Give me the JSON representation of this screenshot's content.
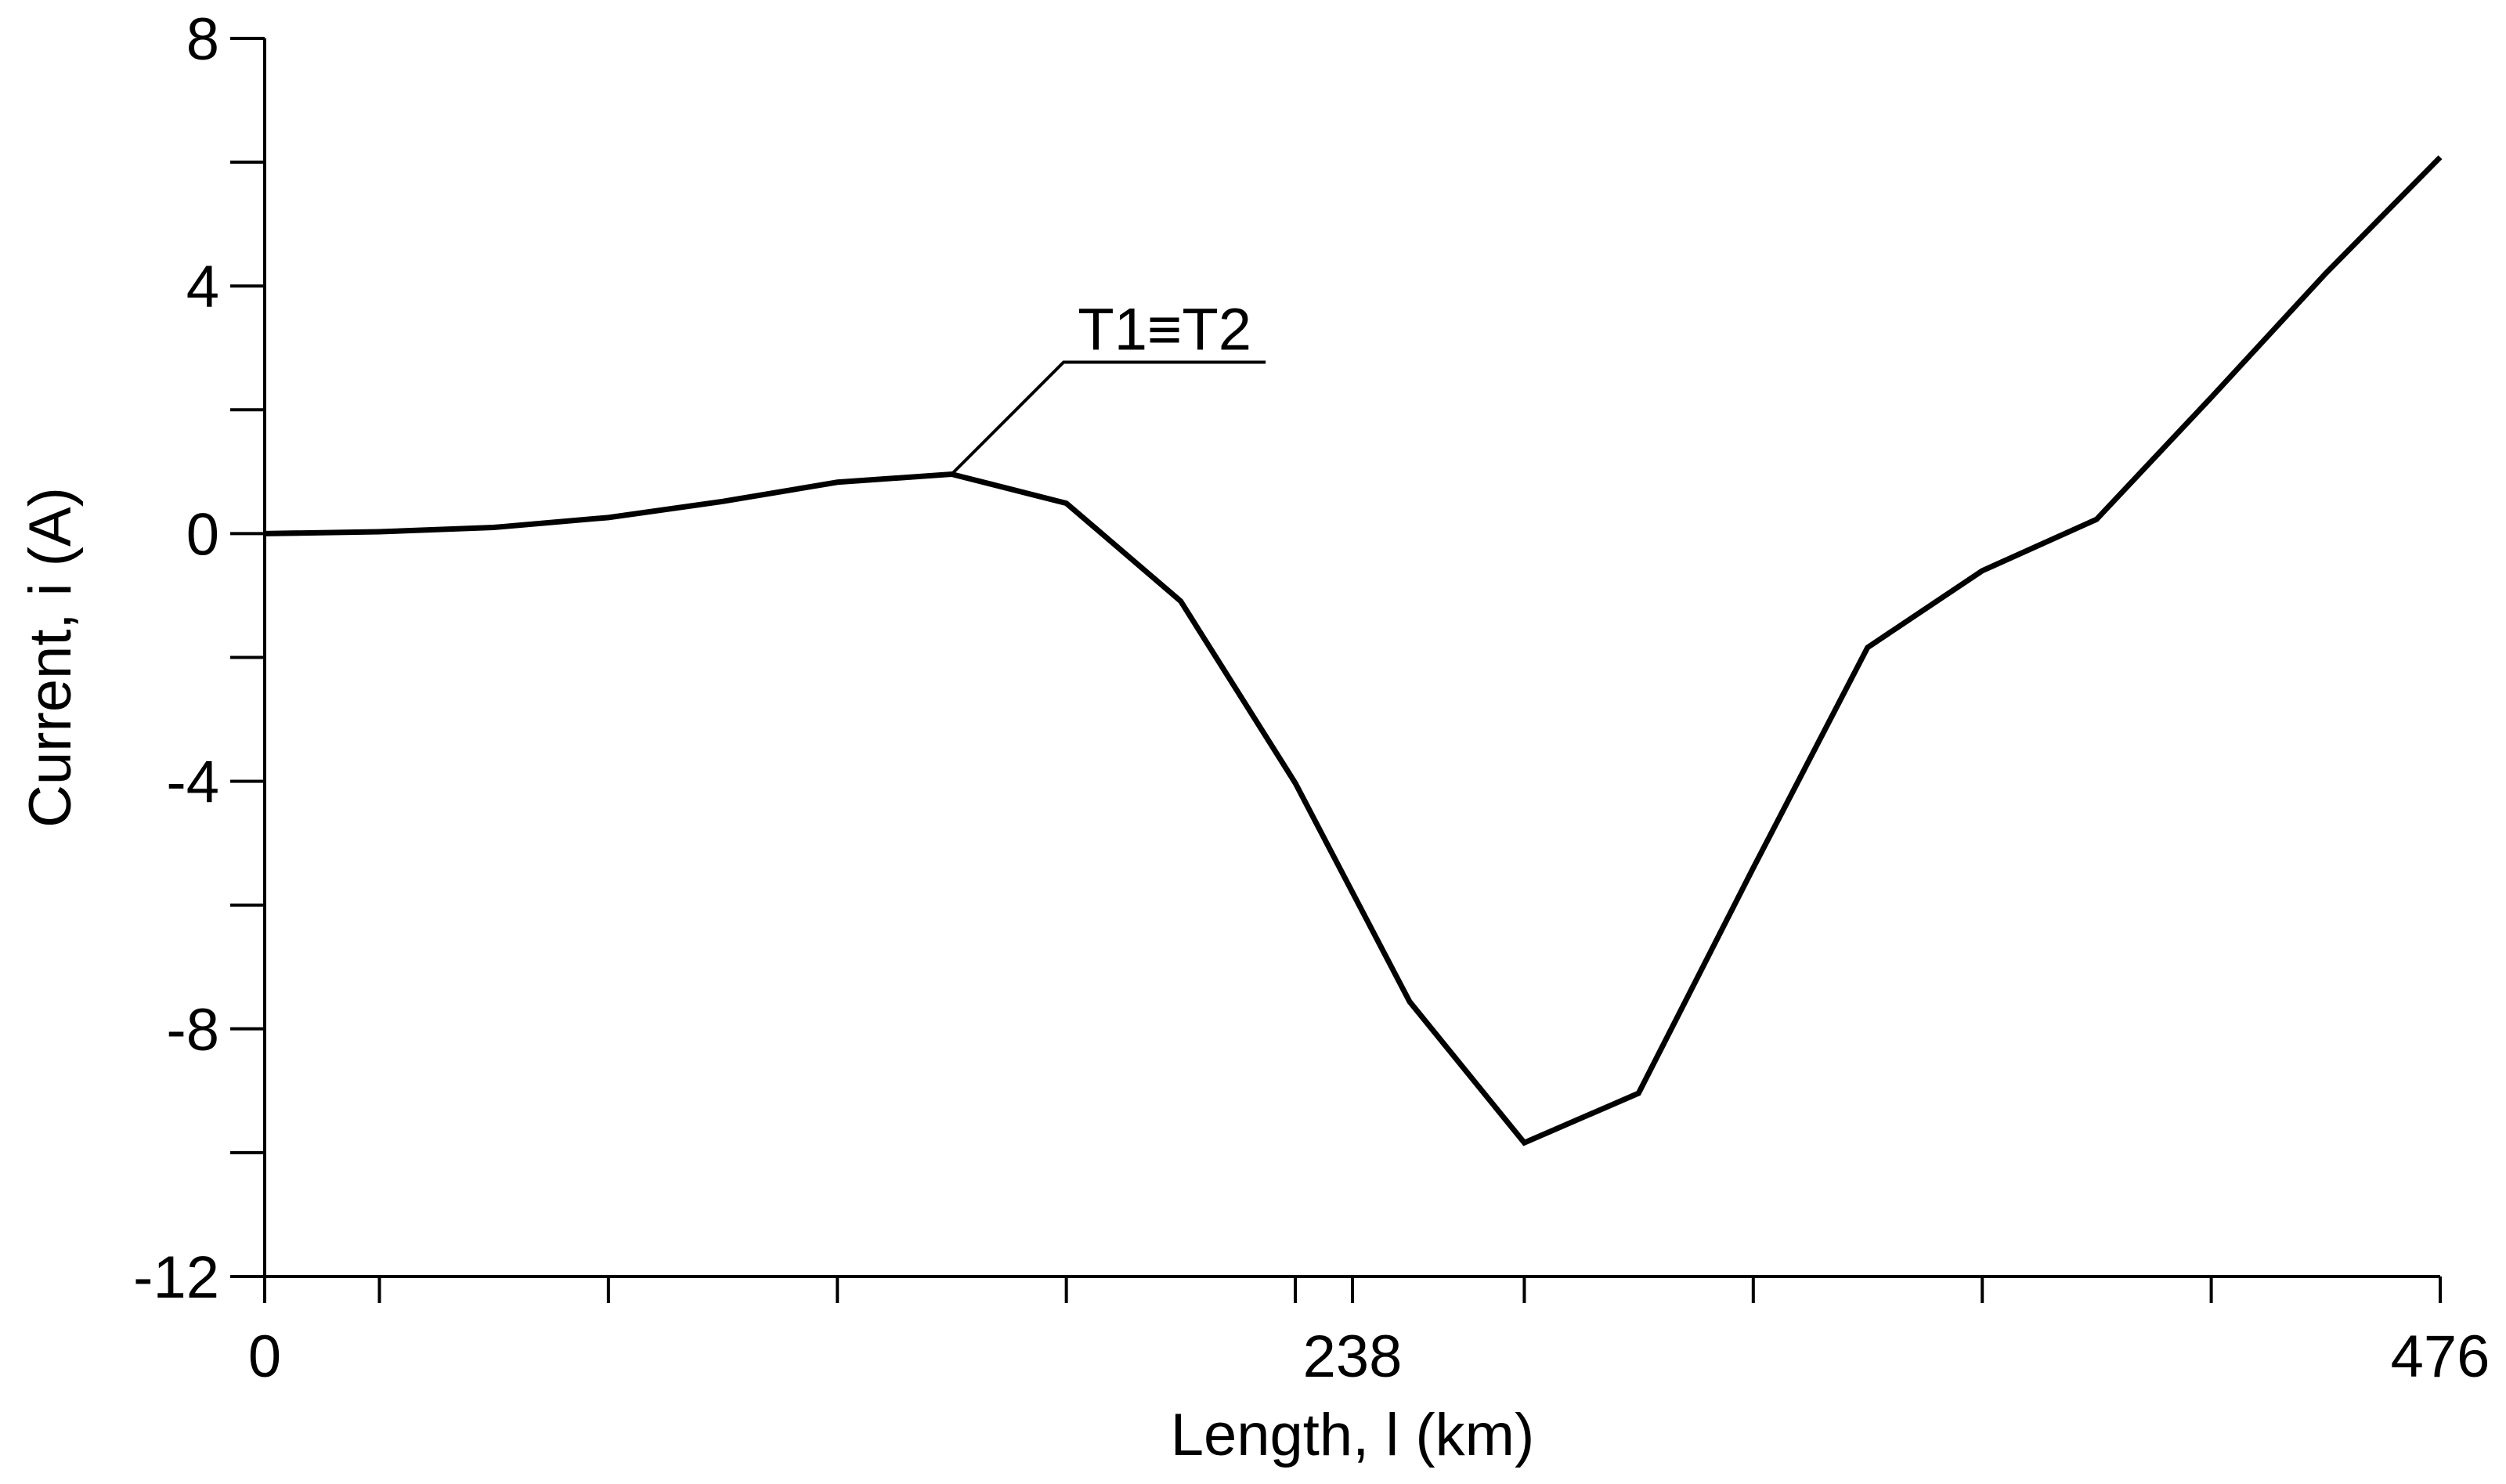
{
  "chart_data": {
    "type": "line",
    "x_label": "Length, l (km)",
    "y_label": "Current, i (A)",
    "annotation": "T1≡T2",
    "annotation_point": 6,
    "x": [
      0,
      25.1,
      50.1,
      75.2,
      100.2,
      125.3,
      150.3,
      175.4,
      200.4,
      225.5,
      250.5,
      275.6,
      300.6,
      325.7,
      350.7,
      375.8,
      400.8,
      425.9,
      450.9,
      476
    ],
    "series": [
      {
        "color": "#000000",
        "values": [
          0,
          0.03,
          0.1,
          0.26,
          0.52,
          0.83,
          0.96,
          0.49,
          -1.09,
          -4.03,
          -7.56,
          -9.84,
          -9.04,
          -5.4,
          -1.84,
          -0.6,
          0.23,
          2.2,
          4.2,
          6.08
        ]
      }
    ],
    "xlim": [
      0,
      476
    ],
    "xticks": [
      0,
      238,
      476
    ],
    "xminorticks": [
      25.1,
      75.2,
      125.3,
      175.4,
      225.5,
      275.6,
      325.7,
      375.8,
      425.9
    ],
    "ylim": [
      -12,
      8
    ],
    "yticks": [
      -12,
      -8,
      -4,
      0,
      4,
      8
    ],
    "yminorticks": [
      -10,
      -6,
      -2,
      2,
      6
    ],
    "grid": false
  }
}
